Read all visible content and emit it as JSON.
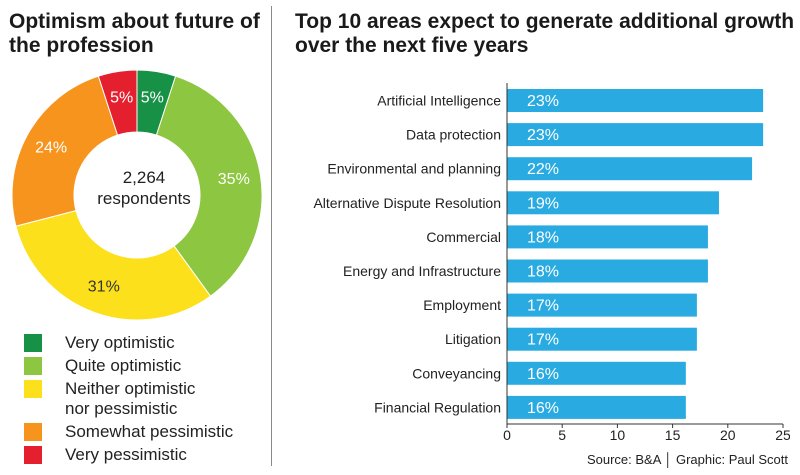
{
  "left_title": "Optimism about future of the profession",
  "right_title": "Top 10 areas expect to generate additional growth over the next five years",
  "source": "Source: B&A │ Graphic: Paul Scott",
  "colors": {
    "very_optimistic": "#179146",
    "quite_optimistic": "#8dc640",
    "neither": "#fce01c",
    "somewhat_pessimistic": "#f7941d",
    "very_pessimistic": "#e5202e",
    "bar": "#29abe2",
    "axis": "#333333"
  },
  "chart_data": [
    {
      "type": "pie",
      "title": "Optimism about future of the profession",
      "center_label": "2,264 respondents",
      "center_lines": [
        "2,264",
        "respondents"
      ],
      "slices": [
        {
          "label": "Very optimistic",
          "value": 5,
          "display": "5%",
          "color": "#179146"
        },
        {
          "label": "Quite optimistic",
          "value": 35,
          "display": "35%",
          "color": "#8dc640"
        },
        {
          "label": "Neither optimistic nor pessimistic",
          "value": 31,
          "display": "31%",
          "color": "#fce01c"
        },
        {
          "label": "Somewhat pessimistic",
          "value": 24,
          "display": "24%",
          "color": "#f7941d"
        },
        {
          "label": "Very pessimistic",
          "value": 5,
          "display": "5%",
          "color": "#e5202e"
        }
      ],
      "legend": [
        {
          "lines": [
            "Very optimistic"
          ],
          "color": "#179146"
        },
        {
          "lines": [
            "Quite optimistic"
          ],
          "color": "#8dc640"
        },
        {
          "lines": [
            "Neither optimistic",
            "nor pessimistic"
          ],
          "color": "#fce01c"
        },
        {
          "lines": [
            "Somewhat pessimistic"
          ],
          "color": "#f7941d"
        },
        {
          "lines": [
            "Very pessimistic"
          ],
          "color": "#e5202e"
        }
      ]
    },
    {
      "type": "bar",
      "orientation": "horizontal",
      "title": "Top 10 areas expect to generate additional growth over the next five years",
      "categories": [
        "Artificial Intelligence",
        "Data protection",
        "Environmental and planning",
        "Alternative Dispute Resolution",
        "Commercial",
        "Energy and Infrastructure",
        "Employment",
        "Litigation",
        "Conveyancing",
        "Financial Regulation"
      ],
      "values": [
        23.2,
        23.2,
        22.2,
        19.2,
        18.2,
        18.2,
        17.2,
        17.2,
        16.2,
        16.2
      ],
      "labels": [
        "23%",
        "23%",
        "22%",
        "19%",
        "18%",
        "18%",
        "17%",
        "17%",
        "16%",
        "16%"
      ],
      "xlim": [
        0,
        25
      ],
      "xticks": [
        0,
        5,
        10,
        15,
        20,
        25
      ],
      "xtick_labels": [
        "0",
        "5",
        "10",
        "15",
        "20",
        "25"
      ],
      "grid": false
    }
  ]
}
